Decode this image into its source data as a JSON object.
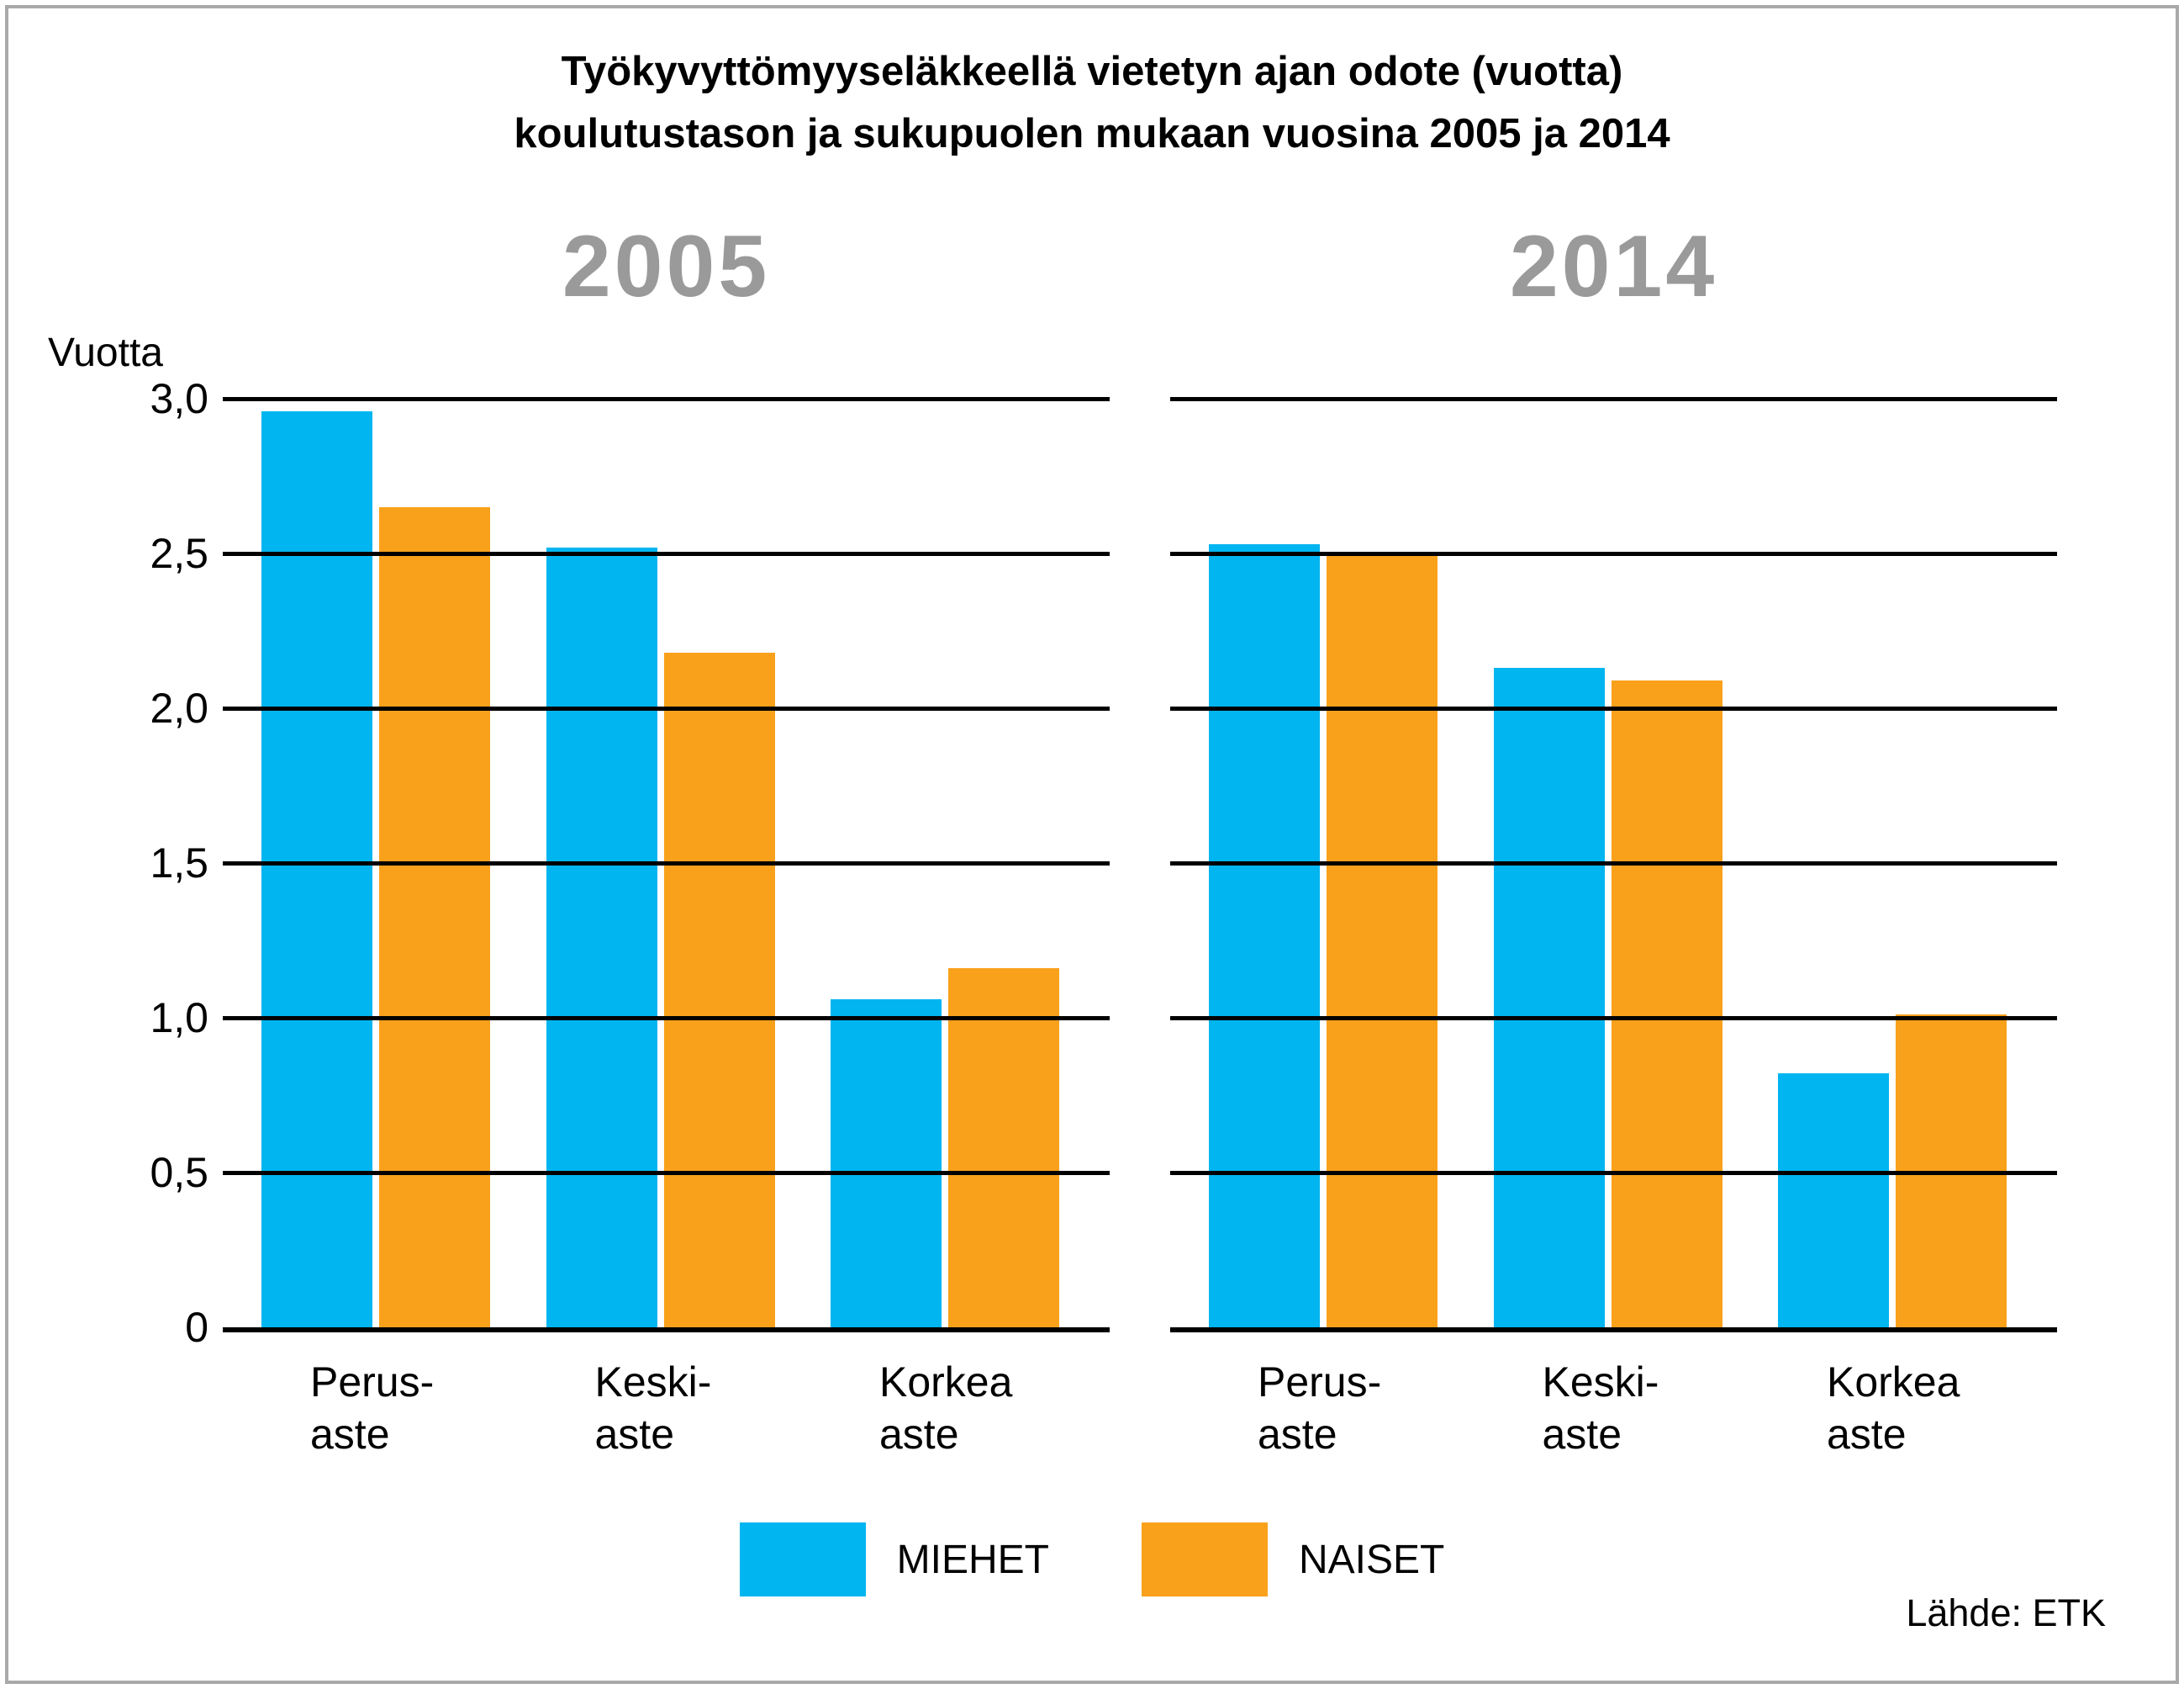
{
  "title": {
    "line1": "Työkyvyttömyyseläkkeellä vietetyn ajan odote (vuotta)",
    "line2": "koulutustason ja sukupuolen mukaan vuosina 2005 ja 2014"
  },
  "y_axis": {
    "label": "Vuotta",
    "tick_labels": [
      "3,0",
      "2,5",
      "2,0",
      "1,5",
      "1,0",
      "0,5",
      "0"
    ],
    "tick_values": [
      3,
      2.5,
      2,
      1.5,
      1,
      0.5,
      0
    ]
  },
  "legend": {
    "items": [
      {
        "label": "MIEHET",
        "color": "#00B5F0"
      },
      {
        "label": "NAISET",
        "color": "#F9A11B"
      }
    ]
  },
  "source": "Lähde: ETK",
  "colors": {
    "men": "#00B5F0",
    "women": "#F9A11B",
    "gridline": "#000000",
    "year_header": "#9A9A9A",
    "frame_border": "#A9A9A9"
  },
  "chart_data": {
    "type": "bar",
    "title": "Työkyvyttömyyseläkkeellä vietetyn ajan odote (vuotta) koulutustason ja sukupuolen mukaan vuosina 2005 ja 2014",
    "title_lines": [
      "Työkyvyttömyyseläkkeellä vietetyn ajan odote (vuotta)",
      "koulutustason ja sukupuolen mukaan vuosina 2005 ja 2014"
    ],
    "ylabel": "Vuotta",
    "ylim": [
      0,
      3
    ],
    "ytick_step": 0.5,
    "grid": true,
    "gridlines_over_bars": true,
    "legend_position": "bottom",
    "categories": [
      "Perus-aste",
      "Keski-aste",
      "Korkea aste"
    ],
    "category_label_lines": [
      [
        "Perus-",
        "aste"
      ],
      [
        "Keski-",
        "aste"
      ],
      [
        "Korkea",
        "aste"
      ]
    ],
    "panels": [
      {
        "year": "2005",
        "series": [
          {
            "name": "MIEHET",
            "values": [
              2.96,
              2.52,
              1.06
            ]
          },
          {
            "name": "NAISET",
            "values": [
              2.65,
              2.18,
              1.16
            ]
          }
        ]
      },
      {
        "year": "2014",
        "series": [
          {
            "name": "MIEHET",
            "values": [
              2.53,
              2.13,
              0.82
            ]
          },
          {
            "name": "NAISET",
            "values": [
              2.5,
              2.09,
              1.01
            ]
          }
        ]
      }
    ]
  }
}
